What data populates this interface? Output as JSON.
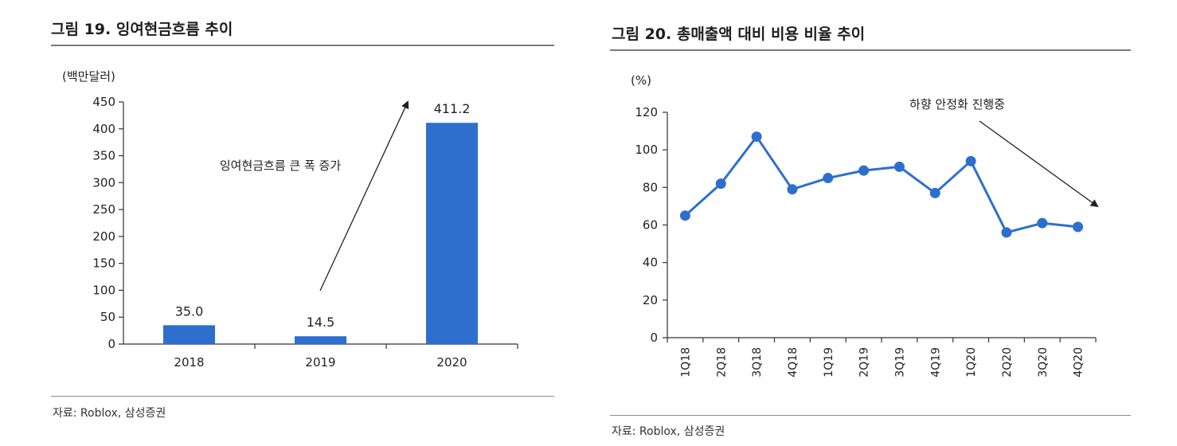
{
  "charts": [
    {
      "figure_title": "그림 19. 잉여현금흐름 추이",
      "source": "자료: Roblox, 삼성증권",
      "unit_label": "(백만달러)",
      "annotation": "잉여현금흐름 큰 폭 증가",
      "bar_color": "#2e6fce"
    },
    {
      "figure_title": "그림 20. 총매출액 대비 비용 비율 추이",
      "source": "자료: Roblox, 삼성증권",
      "unit_label": "(%)",
      "annotation": "하향 안정화 진행중",
      "line_color": "#2e6fce"
    }
  ],
  "chart_data": [
    {
      "type": "bar",
      "title": "그림 19. 잉여현금흐름 추이",
      "ylabel": "(백만달러)",
      "categories": [
        "2018",
        "2019",
        "2020"
      ],
      "values": [
        35.0,
        14.5,
        411.2
      ],
      "value_labels": [
        "35.0",
        "14.5",
        "411.2"
      ],
      "ylim": [
        0,
        450
      ],
      "yticks": [
        "0",
        "50",
        "100",
        "150",
        "200",
        "250",
        "300",
        "350",
        "400",
        "450"
      ],
      "grid": false,
      "legend": "none"
    },
    {
      "type": "line",
      "title": "그림 20. 총매출액 대비 비용 비율 추이",
      "ylabel": "(%)",
      "categories": [
        "1Q18",
        "2Q18",
        "3Q18",
        "4Q18",
        "1Q19",
        "2Q19",
        "3Q19",
        "4Q19",
        "1Q20",
        "2Q20",
        "3Q20",
        "4Q20"
      ],
      "values": [
        65,
        82,
        107,
        79,
        85,
        89,
        91,
        77,
        94,
        56,
        61,
        59
      ],
      "ylim": [
        0,
        120
      ],
      "yticks": [
        "0",
        "20",
        "40",
        "60",
        "80",
        "100",
        "120"
      ],
      "grid": false,
      "legend": "none"
    }
  ]
}
